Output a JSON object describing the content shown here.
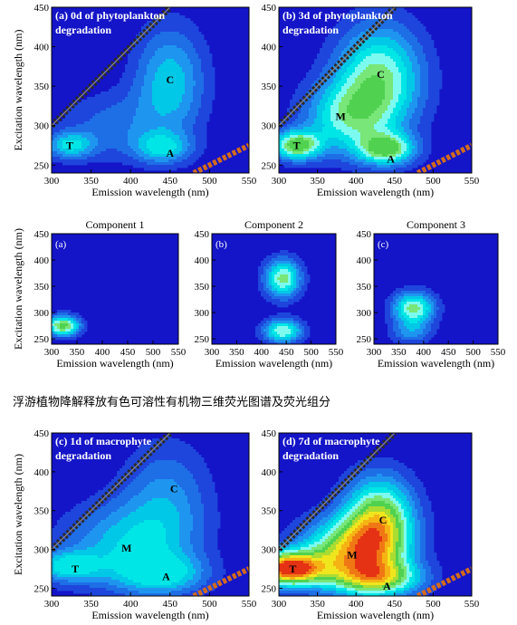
{
  "caption": "浮游植物降解释放有色可溶性有机物三维荧光图谱及荧光组分",
  "colors": {
    "background": "#1414c8",
    "levels": [
      "#1e46dc",
      "#1e6ee6",
      "#1e96f0",
      "#00c8e6",
      "#00e6e6",
      "#7dfaf0",
      "#78e678",
      "#50d250",
      "#aadc32",
      "#f0e61e",
      "#f5b414",
      "#f07814",
      "#e63214"
    ],
    "scatter_band": "#2a2a2a",
    "annotation": "#000000"
  },
  "chart_data": [
    {
      "id": "p1",
      "type": "heatmap",
      "title": "(a) 0d of phytoplankton degradation",
      "title_lines": [
        "(a) 0d of phytoplankton",
        "degradation"
      ],
      "xlabel": "Emission wavelength (nm)",
      "ylabel": "Excitation wavelength (nm)",
      "xlim": [
        300,
        550
      ],
      "ylim": [
        240,
        450
      ],
      "xticks": [
        "300",
        "350",
        "400",
        "450",
        "500",
        "550"
      ],
      "yticks": [
        "250",
        "300",
        "350",
        "400",
        "450"
      ],
      "scatter_lines": true,
      "max_level": 5,
      "peaks": [
        {
          "label": "T",
          "x": 323,
          "y": 275,
          "sx": 22,
          "sy": 12,
          "amp": 4.8
        },
        {
          "label": "A",
          "x": 440,
          "y": 272,
          "sx": 26,
          "sy": 14,
          "amp": 4.4
        },
        {
          "label": "C",
          "x": 450,
          "y": 355,
          "sx": 32,
          "sy": 50,
          "amp": 4.7
        },
        {
          "label": "",
          "x": 375,
          "y": 300,
          "sx": 45,
          "sy": 30,
          "amp": 2.4
        }
      ],
      "labels": [
        {
          "text": "T",
          "x": 323,
          "y": 275
        },
        {
          "text": "A",
          "x": 450,
          "y": 265
        },
        {
          "text": "C",
          "x": 450,
          "y": 358
        }
      ]
    },
    {
      "id": "p2",
      "type": "heatmap",
      "title": "(b) 3d of phytoplankton degradation",
      "title_lines": [
        "(b) 3d of phytoplankton",
        "degradation"
      ],
      "xlabel": "Emission wavelength (nm)",
      "ylabel": "",
      "xlim": [
        300,
        550
      ],
      "ylim": [
        240,
        450
      ],
      "xticks": [
        "300",
        "350",
        "400",
        "450",
        "500",
        "550"
      ],
      "yticks": [
        "250",
        "300",
        "350",
        "400",
        "450"
      ],
      "scatter_lines": true,
      "max_level": 8,
      "peaks": [
        {
          "label": "T",
          "x": 323,
          "y": 275,
          "sx": 22,
          "sy": 13,
          "amp": 8.4
        },
        {
          "label": "A",
          "x": 440,
          "y": 270,
          "sx": 26,
          "sy": 14,
          "amp": 7.5
        },
        {
          "label": "C",
          "x": 430,
          "y": 360,
          "sx": 40,
          "sy": 48,
          "amp": 7.3
        },
        {
          "label": "M",
          "x": 385,
          "y": 310,
          "sx": 40,
          "sy": 32,
          "amp": 5.2
        }
      ],
      "labels": [
        {
          "text": "T",
          "x": 323,
          "y": 275
        },
        {
          "text": "A",
          "x": 445,
          "y": 258
        },
        {
          "text": "C",
          "x": 432,
          "y": 365
        },
        {
          "text": "M",
          "x": 380,
          "y": 312
        }
      ]
    },
    {
      "id": "p3",
      "type": "heatmap",
      "title": "Component 1",
      "title_lines": [],
      "xlabel": "Emission wavelength (nm)",
      "ylabel": "Excitation wavelength (nm)",
      "xlim": [
        300,
        550
      ],
      "ylim": [
        240,
        450
      ],
      "xticks": [
        "300",
        "350",
        "400",
        "450",
        "500",
        "550"
      ],
      "yticks": [
        "250",
        "300",
        "350",
        "400",
        "450"
      ],
      "panel_tag": "(a)",
      "scatter_lines": false,
      "max_level": 8,
      "peaks": [
        {
          "label": "",
          "x": 322,
          "y": 275,
          "sx": 24,
          "sy": 14,
          "amp": 8.5
        }
      ],
      "labels": []
    },
    {
      "id": "p4",
      "type": "heatmap",
      "title": "Component 2",
      "title_lines": [],
      "xlabel": "Emission wavelength (nm)",
      "ylabel": "",
      "xlim": [
        300,
        550
      ],
      "ylim": [
        240,
        450
      ],
      "xticks": [
        "300",
        "350",
        "400",
        "450",
        "500",
        "550"
      ],
      "yticks": [
        "250",
        "300",
        "350",
        "400",
        "450"
      ],
      "panel_tag": "(b)",
      "scatter_lines": false,
      "max_level": 7,
      "peaks": [
        {
          "label": "",
          "x": 443,
          "y": 365,
          "sx": 26,
          "sy": 26,
          "amp": 7.5
        },
        {
          "label": "",
          "x": 443,
          "y": 265,
          "sx": 28,
          "sy": 16,
          "amp": 7.0
        }
      ],
      "labels": []
    },
    {
      "id": "p5",
      "type": "heatmap",
      "title": "Component 3",
      "title_lines": [],
      "xlabel": "Emission wavelength (nm)",
      "ylabel": "",
      "xlim": [
        300,
        550
      ],
      "ylim": [
        240,
        450
      ],
      "xticks": [
        "300",
        "350",
        "400",
        "450",
        "500",
        "550"
      ],
      "yticks": [
        "250",
        "300",
        "350",
        "400",
        "450"
      ],
      "panel_tag": "(c)",
      "scatter_lines": false,
      "max_level": 7,
      "peaks": [
        {
          "label": "",
          "x": 380,
          "y": 308,
          "sx": 30,
          "sy": 22,
          "amp": 7.5
        },
        {
          "label": "",
          "x": 375,
          "y": 262,
          "sx": 30,
          "sy": 16,
          "amp": 3.0
        }
      ],
      "labels": []
    },
    {
      "id": "p6",
      "type": "heatmap",
      "title": "(c) 1d of macrophyte degradation",
      "title_lines": [
        "(c) 1d of macrophyte",
        "degradation"
      ],
      "xlabel": "Emission wavelength (nm)",
      "ylabel": "Excitation wavelength (nm)",
      "xlim": [
        300,
        550
      ],
      "ylim": [
        240,
        450
      ],
      "xticks": [
        "300",
        "350",
        "400",
        "450",
        "500",
        "550"
      ],
      "yticks": [
        "250",
        "300",
        "350",
        "400",
        "450"
      ],
      "scatter_lines": true,
      "max_level": 5,
      "peaks": [
        {
          "label": "T",
          "x": 320,
          "y": 278,
          "sx": 28,
          "sy": 14,
          "amp": 5.0
        },
        {
          "label": "A",
          "x": 440,
          "y": 268,
          "sx": 40,
          "sy": 18,
          "amp": 4.6
        },
        {
          "label": "M",
          "x": 390,
          "y": 305,
          "sx": 55,
          "sy": 38,
          "amp": 4.2
        },
        {
          "label": "C",
          "x": 445,
          "y": 360,
          "sx": 40,
          "sy": 55,
          "amp": 3.3
        }
      ],
      "labels": [
        {
          "text": "T",
          "x": 330,
          "y": 275
        },
        {
          "text": "A",
          "x": 445,
          "y": 265
        },
        {
          "text": "M",
          "x": 395,
          "y": 302
        },
        {
          "text": "C",
          "x": 455,
          "y": 378
        }
      ]
    },
    {
      "id": "p7",
      "type": "heatmap",
      "title": "(d) 7d of macrophyte degradation",
      "title_lines": [
        "(d) 7d of macrophyte",
        "degradation"
      ],
      "xlabel": "Emission wavelength (nm)",
      "ylabel": "",
      "xlim": [
        300,
        550
      ],
      "ylim": [
        240,
        450
      ],
      "xticks": [
        "300",
        "350",
        "400",
        "450",
        "500",
        "550"
      ],
      "yticks": [
        "250",
        "300",
        "350",
        "400",
        "450"
      ],
      "scatter_lines": true,
      "max_level": 13,
      "peaks": [
        {
          "label": "T",
          "x": 312,
          "y": 275,
          "sx": 30,
          "sy": 15,
          "amp": 13.5
        },
        {
          "label": "M",
          "x": 390,
          "y": 295,
          "sx": 45,
          "sy": 30,
          "amp": 9.0
        },
        {
          "label": "C",
          "x": 430,
          "y": 335,
          "sx": 32,
          "sy": 40,
          "amp": 9.5
        },
        {
          "label": "A",
          "x": 430,
          "y": 262,
          "sx": 40,
          "sy": 16,
          "amp": 7.0
        }
      ],
      "labels": [
        {
          "text": "T",
          "x": 318,
          "y": 275
        },
        {
          "text": "A",
          "x": 440,
          "y": 253
        },
        {
          "text": "M",
          "x": 395,
          "y": 293
        },
        {
          "text": "C",
          "x": 435,
          "y": 338
        }
      ]
    }
  ]
}
